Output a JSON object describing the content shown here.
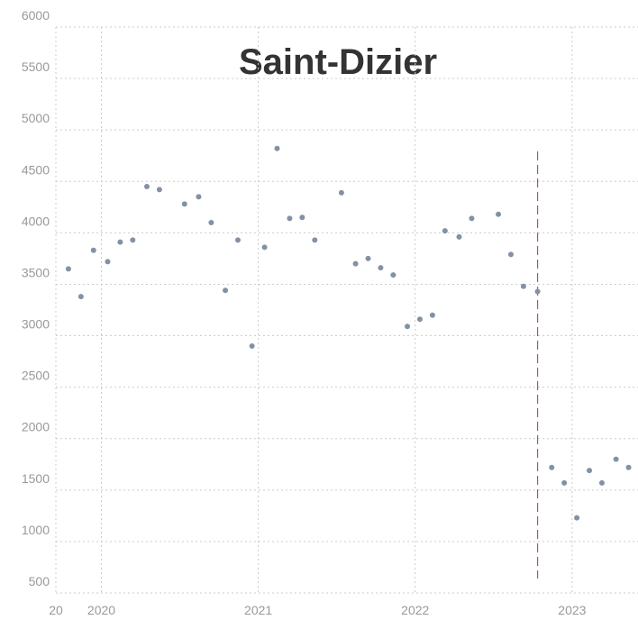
{
  "chart_data": {
    "type": "scatter",
    "title": "Saint-Dizier",
    "x": [
      2019.79,
      2019.87,
      2019.95,
      2020.04,
      2020.12,
      2020.2,
      2020.29,
      2020.37,
      2020.53,
      2020.62,
      2020.7,
      2020.79,
      2020.87,
      2020.96,
      2021.04,
      2021.12,
      2021.2,
      2021.28,
      2021.36,
      2021.53,
      2021.62,
      2021.7,
      2021.78,
      2021.86,
      2021.95,
      2022.03,
      2022.11,
      2022.19,
      2022.28,
      2022.36,
      2022.53,
      2022.61,
      2022.69,
      2022.78,
      2022.87,
      2022.95,
      2023.03,
      2023.11,
      2023.19,
      2023.28,
      2023.36
    ],
    "values": [
      3650,
      3380,
      3830,
      3720,
      3910,
      3930,
      4450,
      4420,
      4280,
      4350,
      4100,
      3440,
      3930,
      2900,
      3860,
      4820,
      4140,
      4150,
      3930,
      4390,
      3700,
      3750,
      3660,
      3590,
      3090,
      3160,
      3200,
      4020,
      3960,
      4140,
      4180,
      3790,
      3480,
      3430,
      1720,
      1570,
      1230,
      1690,
      1570,
      1800,
      1720
    ],
    "color": "#8391a6",
    "vline": {
      "value": 2022.78,
      "color": "#c0504d"
    },
    "xlim": [
      2019.71,
      2023.42
    ],
    "xticks": [
      {
        "value": 2019.71,
        "label": "20"
      },
      2020,
      2021,
      2022,
      2023
    ],
    "ylim": [
      500,
      6000
    ],
    "yticks": [
      500,
      1000,
      1500,
      2000,
      2500,
      3000,
      3500,
      4000,
      4500,
      5000,
      5500,
      6000
    ],
    "grid": true
  }
}
